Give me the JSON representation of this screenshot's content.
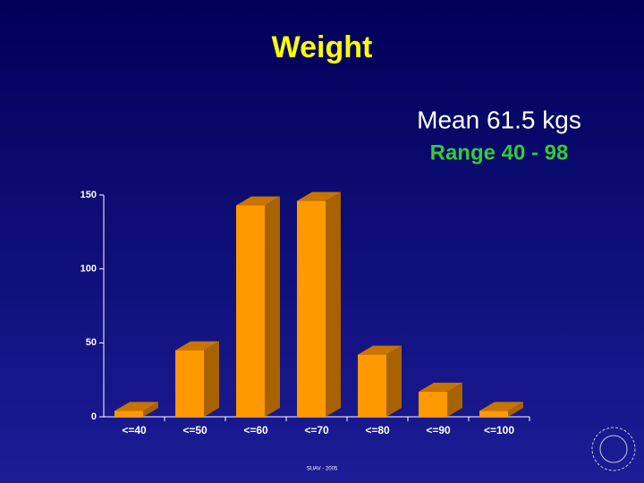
{
  "header": {
    "title": "Weight",
    "mean": "Mean 61.5 kgs",
    "range": "Range 40 - 98"
  },
  "footer": "SUAV - 2005",
  "chart_data": {
    "type": "bar3d",
    "categories": [
      "<=40",
      "<=50",
      "<=60",
      "<=70",
      "<=80",
      "<=90",
      "<=100"
    ],
    "values": [
      4,
      45,
      143,
      146,
      42,
      17,
      4
    ],
    "color": "#ff9900",
    "ylim": [
      0,
      150
    ],
    "yticks": [
      0,
      50,
      100,
      150
    ]
  }
}
